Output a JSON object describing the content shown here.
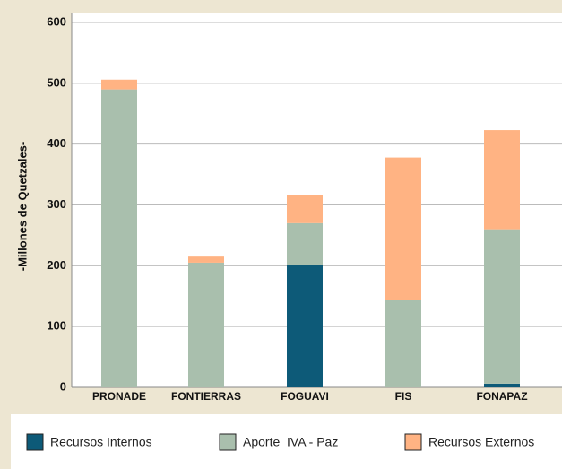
{
  "chart_data": {
    "type": "stacked_bar",
    "y_label": "-Millones de Quetzales-",
    "categories": [
      "PRONADE",
      "FONTIERRAS",
      "FOGUAVI",
      "FIS",
      "FONAPAZ"
    ],
    "series": [
      {
        "name": "Recursos Internos",
        "color": "#0d5a78",
        "values": [
          0,
          0,
          202,
          0,
          6
        ]
      },
      {
        "name": "Aporte  IVA - Paz",
        "color": "#a9bfad",
        "values": [
          490,
          205,
          68,
          143,
          254
        ]
      },
      {
        "name": "Recursos Externos",
        "color": "#ffb383",
        "values": [
          16,
          10,
          46,
          235,
          163
        ]
      }
    ],
    "ylim": [
      0,
      600
    ],
    "yticks": [
      0,
      100,
      200,
      300,
      400,
      500,
      600
    ],
    "grid": true,
    "legend": "bottom"
  }
}
